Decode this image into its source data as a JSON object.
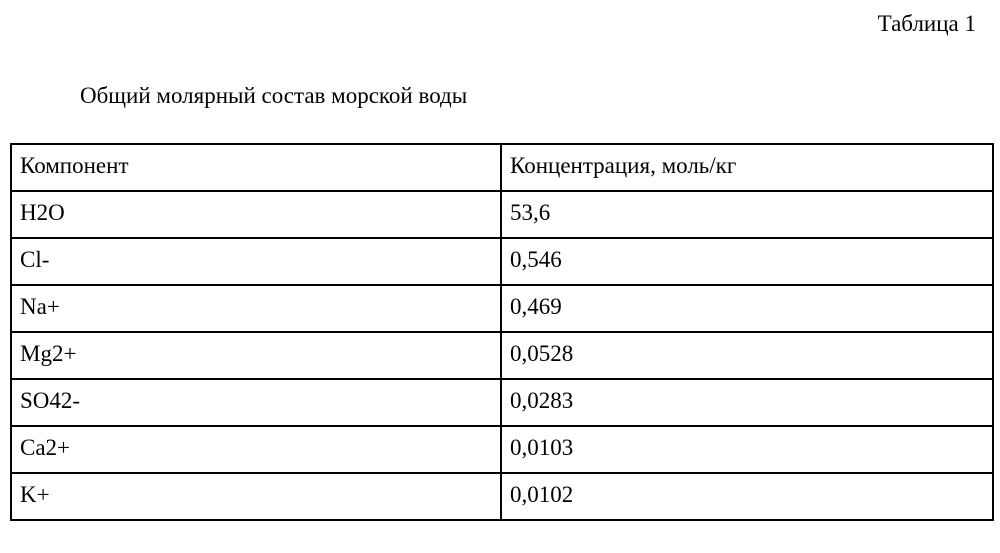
{
  "document": {
    "table_label": "Таблица 1",
    "title": "Общий молярный состав морской воды"
  },
  "table": {
    "header": {
      "component": "Компонент",
      "concentration": "Концентрация, моль/кг"
    },
    "rows": [
      {
        "component": "H2O",
        "concentration": "53,6"
      },
      {
        "component": "Cl-",
        "concentration": "0,546"
      },
      {
        "component": "Na+",
        "concentration": "0,469"
      },
      {
        "component": "Mg2+",
        "concentration": "0,0528"
      },
      {
        "component": "SO42-",
        "concentration": "0,0283"
      },
      {
        "component": "Ca2+",
        "concentration": "0,0103"
      },
      {
        "component": "K+",
        "concentration": "0,0102"
      }
    ]
  }
}
